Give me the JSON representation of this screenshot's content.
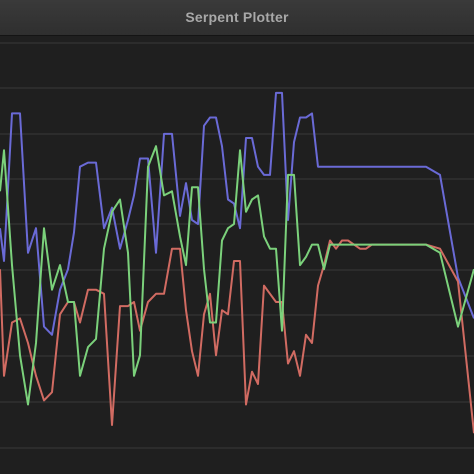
{
  "window": {
    "title": "Serpent Plotter"
  },
  "colors": {
    "background": "#1f1f1f",
    "grid": "#3a3a3a",
    "titlebar": "#333333",
    "title_text": "#a8a8a8"
  },
  "chart_data": {
    "type": "line",
    "grid": true,
    "ylim": [
      0,
      100
    ],
    "series": [
      {
        "color": "#6a6ad6",
        "values": [
          58,
          50,
          86,
          86,
          52,
          58,
          34,
          32,
          43,
          48,
          57,
          73,
          74,
          74,
          58,
          63,
          53,
          60,
          66,
          75,
          75,
          52,
          81,
          81,
          61,
          69,
          60,
          59,
          83,
          85,
          85,
          78,
          65,
          64,
          58,
          80,
          80,
          73,
          71,
          71,
          91,
          91,
          60,
          79,
          85,
          85,
          86,
          73,
          73,
          73,
          73,
          73,
          73,
          73,
          73,
          73,
          73,
          73,
          73,
          73,
          73,
          73,
          73,
          73,
          73,
          73,
          71,
          46,
          36
        ]
      },
      {
        "color": "#d16b62",
        "values": [
          48,
          22,
          35,
          36,
          30,
          22,
          16,
          18,
          37,
          40,
          40,
          35,
          43,
          43,
          42,
          10,
          39,
          39,
          40,
          33,
          40,
          42,
          42,
          53,
          53,
          38,
          28,
          22,
          37,
          42,
          27,
          38,
          37,
          50,
          50,
          15,
          23,
          20,
          44,
          42,
          40,
          40,
          25,
          28,
          22,
          32,
          30,
          44,
          49,
          55,
          53,
          55,
          55,
          54,
          53,
          53,
          54,
          54,
          54,
          54,
          54,
          54,
          54,
          54,
          54,
          54,
          53,
          45,
          8
        ]
      },
      {
        "color": "#7bd17b",
        "values": [
          67,
          77,
          49,
          27,
          15,
          30,
          58,
          43,
          49,
          40,
          40,
          22,
          29,
          31,
          53,
          62,
          65,
          52,
          22,
          27,
          73,
          78,
          66,
          67,
          56,
          49,
          68,
          68,
          48,
          35,
          35,
          55,
          58,
          59,
          77,
          62,
          65,
          66,
          56,
          53,
          53,
          33,
          71,
          71,
          49,
          51,
          54,
          54,
          48,
          54,
          54,
          54,
          54,
          54,
          54,
          54,
          54,
          54,
          54,
          54,
          54,
          54,
          54,
          54,
          54,
          54,
          52,
          34,
          48
        ]
      }
    ]
  }
}
